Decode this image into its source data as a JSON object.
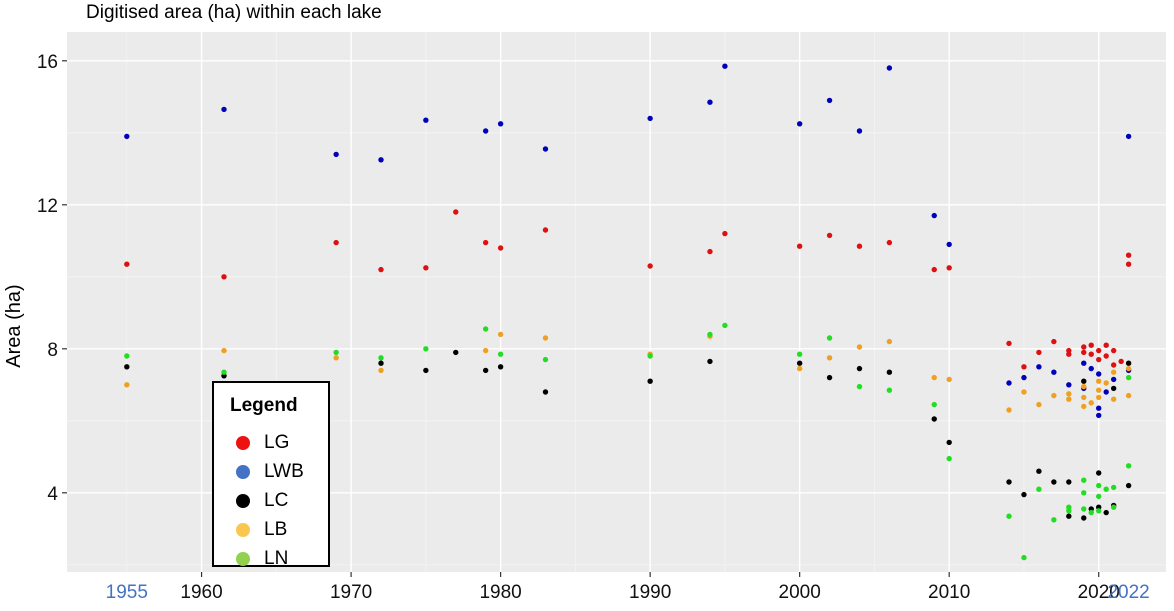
{
  "chart_data": {
    "type": "scatter",
    "title": "Digitised area (ha) within each lake",
    "xlabel": "",
    "ylabel": "Area (ha)",
    "xlim": [
      1951,
      2024.5
    ],
    "ylim": [
      1.8,
      16.8
    ],
    "x_ticks": [
      1960,
      1970,
      1980,
      1990,
      2000,
      2010,
      2020
    ],
    "x_highlight_ticks": [
      1955,
      2022
    ],
    "x_highlight_color": "#4472C4",
    "y_ticks": [
      4,
      8,
      12,
      16
    ],
    "grid": true,
    "legend": {
      "title": "Legend",
      "placement": "bottom-left",
      "entries": [
        {
          "label": "LG",
          "color": "#ee1111"
        },
        {
          "label": "LWB",
          "color": "#4472C4"
        },
        {
          "label": "LC",
          "color": "#000000"
        },
        {
          "label": "LB",
          "color": "#f9c74f"
        },
        {
          "label": "LN",
          "color": "#92d050"
        }
      ]
    },
    "series": [
      {
        "name": "LG",
        "color": "#dd1111",
        "points": [
          [
            1955,
            10.35
          ],
          [
            1961.5,
            10.0
          ],
          [
            1969,
            10.95
          ],
          [
            1972,
            10.2
          ],
          [
            1975,
            10.25
          ],
          [
            1977,
            11.8
          ],
          [
            1979,
            10.95
          ],
          [
            1980,
            10.8
          ],
          [
            1983,
            11.3
          ],
          [
            1990,
            10.3
          ],
          [
            1994,
            10.7
          ],
          [
            1995,
            11.2
          ],
          [
            2000,
            10.85
          ],
          [
            2002,
            11.15
          ],
          [
            2004,
            10.85
          ],
          [
            2006,
            10.95
          ],
          [
            2009,
            10.2
          ],
          [
            2010,
            10.25
          ],
          [
            2014,
            8.15
          ],
          [
            2015,
            7.5
          ],
          [
            2016,
            7.9
          ],
          [
            2017,
            8.2
          ],
          [
            2018,
            7.95
          ],
          [
            2018,
            7.85
          ],
          [
            2019,
            8.05
          ],
          [
            2019,
            7.9
          ],
          [
            2019.5,
            8.1
          ],
          [
            2019.5,
            7.85
          ],
          [
            2020,
            7.95
          ],
          [
            2020,
            7.7
          ],
          [
            2020.5,
            8.1
          ],
          [
            2020.5,
            7.8
          ],
          [
            2021,
            7.95
          ],
          [
            2021,
            7.55
          ],
          [
            2021.5,
            7.65
          ],
          [
            2022,
            10.6
          ],
          [
            2022,
            10.35
          ]
        ]
      },
      {
        "name": "LWB",
        "color": "#0000bb",
        "points": [
          [
            1955,
            13.9
          ],
          [
            1961.5,
            14.65
          ],
          [
            1969,
            13.4
          ],
          [
            1972,
            13.25
          ],
          [
            1975,
            14.35
          ],
          [
            1979,
            14.05
          ],
          [
            1980,
            14.25
          ],
          [
            1983,
            13.55
          ],
          [
            1990,
            14.4
          ],
          [
            1994,
            14.85
          ],
          [
            1995,
            15.85
          ],
          [
            2000,
            14.25
          ],
          [
            2002,
            14.9
          ],
          [
            2004,
            14.05
          ],
          [
            2006,
            15.8
          ],
          [
            2009,
            11.7
          ],
          [
            2010,
            10.9
          ],
          [
            2014,
            7.05
          ],
          [
            2015,
            7.2
          ],
          [
            2016,
            7.5
          ],
          [
            2017,
            7.35
          ],
          [
            2018,
            7.0
          ],
          [
            2019,
            7.6
          ],
          [
            2019,
            6.9
          ],
          [
            2019.5,
            7.45
          ],
          [
            2020,
            7.3
          ],
          [
            2020,
            6.35
          ],
          [
            2020,
            6.15
          ],
          [
            2020.5,
            6.8
          ],
          [
            2021,
            7.15
          ],
          [
            2022,
            7.4
          ],
          [
            2022,
            13.9
          ]
        ]
      },
      {
        "name": "LC",
        "color": "#000000",
        "points": [
          [
            1955,
            7.5
          ],
          [
            1961.5,
            7.25
          ],
          [
            1972,
            7.6
          ],
          [
            1975,
            7.4
          ],
          [
            1977,
            7.9
          ],
          [
            1979,
            7.4
          ],
          [
            1980,
            7.5
          ],
          [
            1983,
            6.8
          ],
          [
            1990,
            7.1
          ],
          [
            1994,
            7.65
          ],
          [
            2000,
            7.6
          ],
          [
            2002,
            7.2
          ],
          [
            2004,
            7.45
          ],
          [
            2006,
            7.35
          ],
          [
            2009,
            6.05
          ],
          [
            2010,
            5.4
          ],
          [
            2014,
            4.3
          ],
          [
            2015,
            3.95
          ],
          [
            2016,
            4.6
          ],
          [
            2017,
            4.3
          ],
          [
            2018,
            3.35
          ],
          [
            2018,
            4.3
          ],
          [
            2019,
            3.3
          ],
          [
            2019,
            7.1
          ],
          [
            2019.5,
            3.55
          ],
          [
            2020,
            4.55
          ],
          [
            2020,
            3.6
          ],
          [
            2020.5,
            3.45
          ],
          [
            2021,
            3.65
          ],
          [
            2021,
            6.9
          ],
          [
            2022,
            7.6
          ],
          [
            2022,
            4.2
          ]
        ]
      },
      {
        "name": "LB",
        "color": "#f0a020",
        "points": [
          [
            1955,
            7.0
          ],
          [
            1961.5,
            7.95
          ],
          [
            1969,
            7.75
          ],
          [
            1972,
            7.4
          ],
          [
            1979,
            7.95
          ],
          [
            1980,
            8.4
          ],
          [
            1983,
            8.3
          ],
          [
            1990,
            7.85
          ],
          [
            1994,
            8.35
          ],
          [
            2000,
            7.45
          ],
          [
            2002,
            7.75
          ],
          [
            2004,
            8.05
          ],
          [
            2006,
            8.2
          ],
          [
            2009,
            7.2
          ],
          [
            2010,
            7.15
          ],
          [
            2014,
            6.3
          ],
          [
            2015,
            6.8
          ],
          [
            2016,
            6.45
          ],
          [
            2017,
            6.7
          ],
          [
            2018,
            6.6
          ],
          [
            2018,
            6.75
          ],
          [
            2019,
            6.4
          ],
          [
            2019,
            6.65
          ],
          [
            2019,
            6.95
          ],
          [
            2019.5,
            6.5
          ],
          [
            2020,
            7.1
          ],
          [
            2020,
            6.85
          ],
          [
            2020,
            6.65
          ],
          [
            2020.5,
            7.05
          ],
          [
            2021,
            6.6
          ],
          [
            2021,
            7.35
          ],
          [
            2022,
            6.7
          ],
          [
            2022,
            7.45
          ]
        ]
      },
      {
        "name": "LN",
        "color": "#22dd22",
        "points": [
          [
            1955,
            7.8
          ],
          [
            1961.5,
            7.35
          ],
          [
            1969,
            7.9
          ],
          [
            1972,
            7.75
          ],
          [
            1975,
            8.0
          ],
          [
            1979,
            8.55
          ],
          [
            1980,
            7.85
          ],
          [
            1983,
            7.7
          ],
          [
            1990,
            7.8
          ],
          [
            1994,
            8.4
          ],
          [
            1995,
            8.65
          ],
          [
            2000,
            7.85
          ],
          [
            2002,
            8.3
          ],
          [
            2004,
            6.95
          ],
          [
            2006,
            6.85
          ],
          [
            2009,
            6.45
          ],
          [
            2010,
            4.95
          ],
          [
            2014,
            3.35
          ],
          [
            2015,
            2.2
          ],
          [
            2016,
            4.1
          ],
          [
            2017,
            3.25
          ],
          [
            2018,
            3.6
          ],
          [
            2018,
            3.5
          ],
          [
            2019,
            4.35
          ],
          [
            2019,
            4.0
          ],
          [
            2019,
            3.55
          ],
          [
            2019.5,
            3.45
          ],
          [
            2020,
            4.2
          ],
          [
            2020,
            3.9
          ],
          [
            2020,
            3.5
          ],
          [
            2020.5,
            4.1
          ],
          [
            2021,
            4.15
          ],
          [
            2021,
            3.6
          ],
          [
            2022,
            4.75
          ],
          [
            2022,
            7.2
          ]
        ]
      }
    ]
  }
}
